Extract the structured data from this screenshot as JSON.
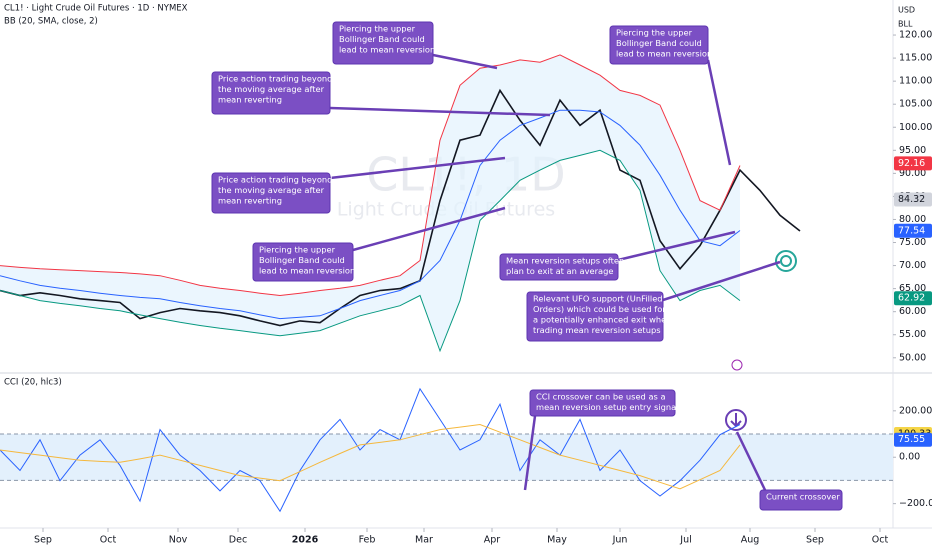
{
  "header": {
    "symbol": "CL1! · Light Crude Oil Futures · 1D · NYMEX",
    "indicator": "BB (20, SMA, close, 2)",
    "currency": "USD",
    "badge": "BLL"
  },
  "watermark": {
    "symbol": "CL1!, 1D",
    "name": "Light Crude Oil Futures"
  },
  "chart_data": [
    {
      "type": "line",
      "xlim": [
        0,
        44.65
      ],
      "ylim": [
        46.7,
        127.6
      ],
      "yticks": [
        {
          "value": 50,
          "label": "50.00"
        },
        {
          "value": 55,
          "label": "55.00"
        },
        {
          "value": 60,
          "label": "60.00"
        },
        {
          "value": 65,
          "label": "65.00"
        },
        {
          "value": 70,
          "label": "70.00"
        },
        {
          "value": 75,
          "label": "75.00"
        },
        {
          "value": 80,
          "label": "80.00"
        },
        {
          "value": 85,
          "label": "85.00"
        },
        {
          "value": 90,
          "label": "90.00"
        },
        {
          "value": 95,
          "label": "95.00"
        },
        {
          "value": 100,
          "label": "100.00"
        },
        {
          "value": 105,
          "label": "105.00"
        },
        {
          "value": 110,
          "label": "110.00"
        },
        {
          "value": 115,
          "label": "115.00"
        },
        {
          "value": 120,
          "label": "120.00"
        }
      ],
      "series": [
        {
          "color": "#131722",
          "values": [
            64.6,
            63.5,
            64.1,
            63.5,
            62.8,
            62.4,
            62.0,
            58.5,
            59.8,
            60.7,
            60.2,
            59.8,
            59.1,
            58.0,
            57.0,
            58.0,
            57.6,
            60.7,
            63.5,
            64.6,
            65.0,
            66.7,
            84.1,
            97.2,
            98.3,
            108.0,
            101.5,
            96.1,
            105.9,
            100.4,
            103.7,
            90.7,
            88.5,
            75.4,
            69.3,
            74.3,
            82.0,
            90.7,
            86.3,
            80.9,
            77.5
          ]
        },
        {
          "color": "#f23645",
          "values": [
            70.0,
            69.6,
            69.3,
            69.1,
            68.9,
            68.7,
            68.5,
            68.2,
            67.8,
            66.8,
            65.7,
            65.1,
            64.6,
            64.0,
            63.5,
            64.0,
            64.6,
            65.1,
            65.7,
            66.8,
            67.8,
            71.1,
            97.2,
            109.1,
            112.8,
            113.5,
            114.6,
            114.1,
            115.7,
            113.5,
            111.3,
            108.0,
            106.9,
            104.8,
            95.0,
            84.1,
            82.0,
            91.7,
            null,
            null,
            null
          ]
        },
        {
          "color": "#2962ff",
          "values": [
            67.8,
            66.7,
            65.7,
            65.1,
            64.6,
            64.0,
            63.5,
            63.1,
            62.8,
            62.0,
            61.3,
            60.7,
            60.2,
            59.3,
            58.5,
            58.8,
            59.1,
            60.7,
            62.4,
            63.5,
            64.6,
            66.7,
            71.1,
            79.8,
            91.7,
            97.2,
            100.4,
            102.0,
            103.7,
            103.7,
            103.3,
            100.4,
            96.1,
            89.6,
            82.0,
            75.4,
            74.3,
            77.6,
            null,
            null,
            null
          ]
        },
        {
          "color": "#089981",
          "values": [
            64.6,
            63.5,
            62.4,
            61.8,
            61.3,
            60.7,
            60.2,
            59.3,
            58.5,
            57.7,
            57.0,
            56.4,
            55.9,
            55.3,
            54.8,
            55.3,
            55.9,
            57.5,
            59.1,
            60.2,
            61.3,
            63.5,
            51.5,
            62.4,
            79.8,
            84.1,
            88.5,
            90.7,
            92.8,
            93.9,
            95.0,
            92.8,
            86.3,
            68.9,
            62.4,
            64.6,
            65.7,
            62.4,
            null,
            null,
            null
          ]
        }
      ],
      "price_tags": [
        {
          "value": 92.16,
          "color": "#f23645"
        },
        {
          "value": 84.32,
          "color": "#d1d4dc"
        },
        {
          "value": 77.54,
          "color": "#2962ff"
        },
        {
          "value": 62.92,
          "color": "#089981"
        }
      ]
    },
    {
      "type": "line",
      "title": "CCI (20, hlc3)",
      "xlim": [
        0,
        44.65
      ],
      "ylim": [
        -305,
        363
      ],
      "band": [
        -100,
        100
      ],
      "yticks": [
        {
          "value": 200,
          "label": "200.00"
        },
        {
          "value": 0,
          "label": "0.00"
        },
        {
          "value": -200,
          "label": "−200.00"
        }
      ],
      "xticks": [
        {
          "value": 2.15,
          "label": "Sep"
        },
        {
          "value": 5.4,
          "label": "Oct"
        },
        {
          "value": 8.9,
          "label": "Nov"
        },
        {
          "value": 11.9,
          "label": "Dec"
        },
        {
          "value": 15.25,
          "label": "2026"
        },
        {
          "value": 18.35,
          "label": "Feb"
        },
        {
          "value": 21.2,
          "label": "Mar"
        },
        {
          "value": 24.6,
          "label": "Apr"
        },
        {
          "value": 27.85,
          "label": "May"
        },
        {
          "value": 31,
          "label": "Jun"
        },
        {
          "value": 34.3,
          "label": "Jul"
        },
        {
          "value": 37.5,
          "label": "Aug"
        },
        {
          "value": 40.75,
          "label": "Sep"
        },
        {
          "value": 44,
          "label": "Oct"
        }
      ],
      "series": [
        {
          "color": "#2962ff",
          "values": [
            31,
            -57,
            75,
            -101,
            9,
            75,
            -35,
            -189,
            119,
            9,
            -57,
            -145,
            -57,
            -101,
            -233,
            -57,
            75,
            163,
            31,
            119,
            75,
            295,
            163,
            31,
            75,
            229,
            -57,
            75,
            9,
            163,
            -57,
            31,
            -101,
            -167,
            -101,
            -13,
            97,
            141,
            null,
            null,
            null
          ]
        },
        {
          "color": "#f5b83d",
          "values": [
            31,
            20,
            9,
            -2,
            -13,
            -18,
            -22,
            -7,
            9,
            -13,
            -35,
            -57,
            -79,
            -90,
            -101,
            -62,
            -22,
            16,
            53,
            64,
            75,
            97,
            119,
            130,
            141,
            108,
            75,
            42,
            9,
            -13,
            -35,
            -57,
            -79,
            -108,
            -136,
            -97,
            -57,
            53,
            null,
            null,
            null
          ]
        }
      ],
      "price_tags": [
        {
          "value": 100.33,
          "color": "#f5d547"
        },
        {
          "value": 75.55,
          "color": "#2962ff"
        }
      ]
    }
  ],
  "annotations": [
    {
      "lines": [
        "Piercing the upper",
        "Bollinger Band could",
        "lead to mean reversion"
      ]
    },
    {
      "lines": [
        "Price action trading beyond",
        "the moving average after",
        "mean reverting"
      ]
    },
    {
      "lines": [
        "Price action trading beyond",
        "the moving average after",
        "mean reverting"
      ]
    },
    {
      "lines": [
        "Piercing the upper",
        "Bollinger Band could",
        "lead to mean reversion"
      ]
    },
    {
      "lines": [
        "Piercing the upper",
        "Bollinger Band could",
        "lead to mean reversion"
      ]
    },
    {
      "lines": [
        "Mean reversion setups often",
        "plan to exit at an average"
      ]
    },
    {
      "lines": [
        "Relevant UFO support (UnFilled",
        "Orders) which could be used for",
        "a potentially enhanced exit when",
        "trading mean reversion setups"
      ]
    },
    {
      "lines": [
        "CCI crossover can be used as a",
        "mean reversion setup entry signal"
      ]
    },
    {
      "lines": [
        "Current crossover"
      ]
    }
  ]
}
